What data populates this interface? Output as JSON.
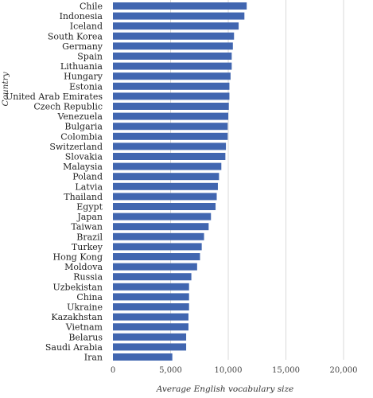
{
  "chart_data": {
    "type": "bar",
    "orientation": "horizontal",
    "categories": [
      "Chile",
      "Indonesia",
      "Iceland",
      "South Korea",
      "Germany",
      "Spain",
      "Lithuania",
      "Hungary",
      "Estonia",
      "United Arab Emirates",
      "Czech Republic",
      "Venezuela",
      "Bulgaria",
      "Colombia",
      "Switzerland",
      "Slovakia",
      "Malaysia",
      "Poland",
      "Latvia",
      "Thailand",
      "Egypt",
      "Japan",
      "Taiwan",
      "Brazil",
      "Turkey",
      "Hong Kong",
      "Moldova",
      "Russia",
      "Uzbekistan",
      "China",
      "Ukraine",
      "Kazakhstan",
      "Vietnam",
      "Belarus",
      "Saudi Arabia",
      "Iran"
    ],
    "values": [
      11600,
      11400,
      10900,
      10500,
      10400,
      10300,
      10300,
      10200,
      10100,
      10100,
      10050,
      10000,
      9950,
      9950,
      9800,
      9750,
      9400,
      9200,
      9100,
      9000,
      8900,
      8500,
      8300,
      7900,
      7700,
      7550,
      7300,
      6800,
      6600,
      6600,
      6600,
      6550,
      6550,
      6350,
      6350,
      5150
    ],
    "xlabel": "Average English vocabulary size",
    "ylabel": "Country",
    "xlim": [
      0,
      20000
    ],
    "xticks": [
      0,
      5000,
      10000,
      15000,
      20000
    ],
    "xtick_labels": [
      "0",
      "5,000",
      "10,000",
      "15,000",
      "20,000"
    ],
    "grid": "vertical",
    "bar_color": "#4166b0"
  }
}
